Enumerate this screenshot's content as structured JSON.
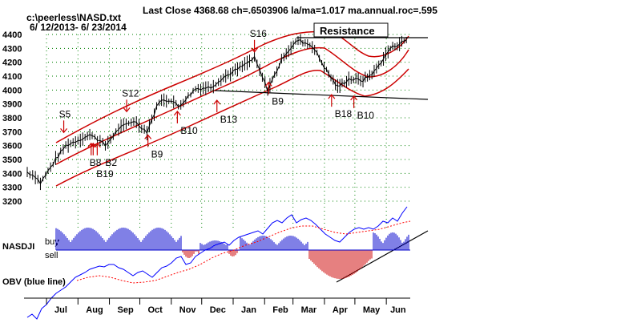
{
  "header": {
    "title": "Last Close 4368.68 ch=.6503906  la/ma=1.017 ma.annual.roc=.595",
    "file": "c:\\peerless\\NASD.txt",
    "date_range": "6/ 12/2013- 6/ 23/2014"
  },
  "labels": {
    "resistance": "Resistance",
    "nasdji": "NASDJI",
    "buy": "buy",
    "sell": "sell",
    "obv": "OBV (blue line)"
  },
  "colors": {
    "price": "#000000",
    "bands": "#cc0000",
    "nasdji_buy": "#0000cc",
    "nasdji_sell": "#cc0000",
    "signal_arrow": "#cc0000",
    "obv": "#0000ff",
    "obv_ma": "#ff0000",
    "grid": "#008000"
  },
  "chart_data": {
    "type": "line",
    "yticks": [
      4400,
      4300,
      4200,
      4100,
      4000,
      3900,
      3800,
      3700,
      3600,
      3500,
      3400,
      3300,
      3200
    ],
    "ylim": [
      3200,
      4400
    ],
    "months": [
      "Jul",
      "Aug",
      "Sep",
      "Oct",
      "Nov",
      "Dec",
      "Jan",
      "Feb",
      "Mar",
      "Apr",
      "May",
      "Jun"
    ],
    "grid": true,
    "price_series": [
      {
        "date": "2013-06-12",
        "close": 3410
      },
      {
        "date": "2013-06-20",
        "close": 3380
      },
      {
        "date": "2013-06-25",
        "close": 3330
      },
      {
        "date": "2013-07-10",
        "close": 3500
      },
      {
        "date": "2013-07-20",
        "close": 3600
      },
      {
        "date": "2013-08-01",
        "close": 3640
      },
      {
        "date": "2013-08-15",
        "close": 3680
      },
      {
        "date": "2013-08-28",
        "close": 3600
      },
      {
        "date": "2013-09-10",
        "close": 3720
      },
      {
        "date": "2013-09-25",
        "close": 3780
      },
      {
        "date": "2013-10-08",
        "close": 3700
      },
      {
        "date": "2013-10-20",
        "close": 3920
      },
      {
        "date": "2013-11-01",
        "close": 3930
      },
      {
        "date": "2013-11-08",
        "close": 3880
      },
      {
        "date": "2013-11-25",
        "close": 4010
      },
      {
        "date": "2013-12-10",
        "close": 4020
      },
      {
        "date": "2013-12-20",
        "close": 4080
      },
      {
        "date": "2014-01-10",
        "close": 4170
      },
      {
        "date": "2014-01-22",
        "close": 4230
      },
      {
        "date": "2014-02-04",
        "close": 4000
      },
      {
        "date": "2014-02-20",
        "close": 4250
      },
      {
        "date": "2014-03-06",
        "close": 4360
      },
      {
        "date": "2014-03-20",
        "close": 4320
      },
      {
        "date": "2014-04-03",
        "close": 4140
      },
      {
        "date": "2014-04-14",
        "close": 4020
      },
      {
        "date": "2014-04-25",
        "close": 4080
      },
      {
        "date": "2014-05-09",
        "close": 4070
      },
      {
        "date": "2014-05-20",
        "close": 4130
      },
      {
        "date": "2014-06-05",
        "close": 4300
      },
      {
        "date": "2014-06-23",
        "close": 4369
      }
    ],
    "signals": [
      {
        "label": "S5",
        "type": "sell",
        "date": "2013-07-18",
        "price": 3700
      },
      {
        "label": "S12",
        "type": "sell",
        "date": "2013-09-18",
        "price": 3850
      },
      {
        "label": "S16",
        "type": "sell",
        "date": "2014-01-22",
        "price": 4280
      },
      {
        "label": "B9",
        "type": "buy",
        "date": "2013-10-09",
        "price": 3590
      },
      {
        "label": "B10",
        "type": "buy",
        "date": "2013-11-07",
        "price": 3760
      },
      {
        "label": "B13",
        "type": "buy",
        "date": "2013-12-16",
        "price": 3840
      },
      {
        "label": "B9",
        "type": "buy",
        "date": "2014-02-05",
        "price": 3970
      },
      {
        "label": "B18",
        "type": "buy",
        "date": "2014-04-08",
        "price": 3880
      },
      {
        "label": "B10",
        "type": "buy",
        "date": "2014-04-30",
        "price": 3870
      },
      {
        "label": "B8",
        "type": "buy",
        "date": "2013-08-14",
        "price": 3530
      },
      {
        "label": "B2",
        "type": "buy",
        "date": "2013-08-20",
        "price": 3530
      },
      {
        "label": "B19",
        "type": "buy",
        "date": "2013-08-16",
        "price": 3530
      }
    ],
    "annotations": [
      "Resistance"
    ]
  }
}
